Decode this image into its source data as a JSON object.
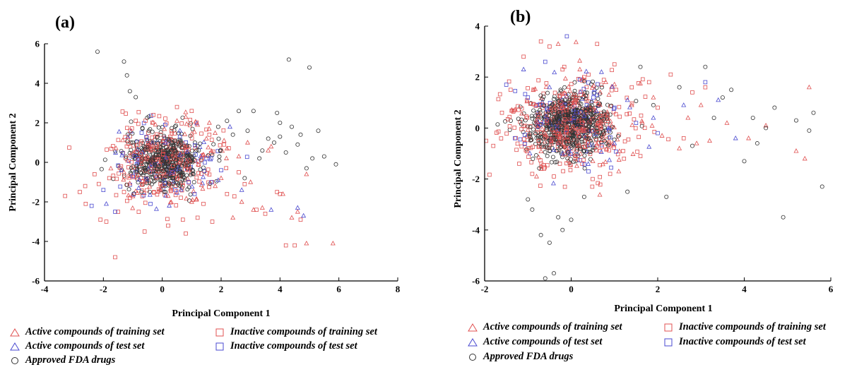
{
  "colors": {
    "active_training": "#e05050",
    "inactive_training": "#e05050",
    "active_test": "#4a4ad0",
    "inactive_test": "#4a4ad0",
    "fda": "#333333"
  },
  "legend": {
    "active_training": "Active compounds of training set",
    "inactive_training": "Inactive compounds of training set",
    "active_test": "Active compounds of test set",
    "inactive_test": "Inactive compounds of test set",
    "fda": "Approved FDA drugs"
  },
  "chart_data": [
    {
      "type": "scatter",
      "panel_label": "(a)",
      "xlabel": "Principal Component 1",
      "ylabel": "Principal Component 2",
      "xlim": [
        -4,
        8
      ],
      "ylim": [
        -6,
        6
      ],
      "xticks": [
        -4,
        -2,
        0,
        2,
        4,
        6,
        8
      ],
      "yticks": [
        -6,
        -4,
        -2,
        0,
        2,
        4,
        6
      ],
      "series": [
        {
          "name": "Active compounds of training set",
          "marker": "triangle",
          "x": [
            0.8,
            1.2,
            1.6,
            2.1,
            2.6,
            3.0,
            3.4,
            3.7,
            4.1,
            4.6,
            4.9,
            5.8,
            4.9,
            1.0,
            1.5,
            2.4,
            2.9,
            0.5,
            1.8,
            2.2,
            3.1,
            4.4,
            -0.6,
            -1.3,
            0.2,
            2.7,
            3.6,
            1.4,
            0.9,
            2.0
          ],
          "y": [
            2.3,
            1.9,
            2.0,
            1.1,
            0.3,
            -1.0,
            -2.3,
            0.8,
            -1.6,
            -2.5,
            -4.1,
            -4.1,
            -0.6,
            -2.0,
            1.2,
            -2.8,
            1.0,
            2.1,
            -1.2,
            0.7,
            -2.4,
            -2.8,
            -1.0,
            -0.5,
            -1.7,
            -2.0,
            0.6,
            0.4,
            -0.4,
            -0.8
          ]
        },
        {
          "name": "Inactive compounds of training set",
          "marker": "square",
          "x": [
            -3.3,
            -2.8,
            -2.1,
            -1.9,
            -1.6,
            -1.5,
            -1.3,
            -0.6,
            0.2,
            0.8,
            1.2,
            1.7,
            2.2,
            2.6,
            3.5,
            3.9,
            4.2,
            4.5,
            4.7,
            -2.3,
            -1.8,
            -1.1,
            0.5,
            1.0,
            1.6,
            2.1,
            2.8,
            3.2,
            4.0,
            -0.9,
            -0.3,
            0.7,
            1.4,
            -2.6,
            -1.4
          ],
          "y": [
            -1.7,
            -1.5,
            -2.9,
            -3.0,
            -4.8,
            -2.5,
            -1.5,
            -3.5,
            -3.2,
            -3.6,
            -2.8,
            -3.0,
            -1.6,
            -0.5,
            -2.6,
            -1.5,
            -4.2,
            -4.2,
            -2.9,
            -0.6,
            -0.8,
            -1.8,
            2.8,
            2.6,
            1.4,
            0.9,
            -1.1,
            -2.4,
            -1.6,
            2.1,
            2.4,
            -2.9,
            -2.1,
            -2.1,
            -0.2
          ]
        },
        {
          "name": "Active compounds of test set",
          "marker": "triangle",
          "x": [
            -1.9,
            -0.8,
            0.6,
            1.3,
            2.3,
            2.7,
            3.7,
            4.6,
            4.8,
            0.1,
            1.9
          ],
          "y": [
            -2.1,
            -1.3,
            1.6,
            0.3,
            1.8,
            -1.4,
            -2.4,
            -2.3,
            -2.7,
            1.0,
            -0.9
          ]
        },
        {
          "name": "Inactive compounds of test set",
          "marker": "square",
          "x": [
            -2.4,
            -2.0,
            -1.6,
            -1.0,
            -0.4,
            0.1,
            0.6,
            1.1,
            1.5,
            2.0,
            -0.7,
            0.9
          ],
          "y": [
            -2.2,
            -1.4,
            -2.5,
            -0.7,
            -2.1,
            1.9,
            1.3,
            -1.6,
            0.2,
            -0.4,
            1.5,
            -1.0
          ]
        },
        {
          "name": "Approved FDA drugs",
          "marker": "circle",
          "x": [
            -2.2,
            -1.3,
            -1.2,
            -1.1,
            -0.9,
            4.3,
            5.0,
            3.1,
            3.9,
            4.0,
            4.4,
            4.7,
            5.3,
            5.9,
            3.8,
            4.2,
            3.4,
            2.6,
            2.9,
            2.2,
            4.9,
            5.1,
            3.6,
            4.6,
            2.4,
            2.8,
            1.9,
            3.3,
            4.0,
            5.5
          ],
          "y": [
            5.6,
            5.1,
            4.4,
            3.6,
            3.3,
            5.2,
            4.8,
            2.6,
            2.5,
            2.0,
            1.8,
            1.4,
            1.6,
            -0.1,
            1.0,
            0.5,
            0.6,
            2.6,
            1.6,
            2.1,
            -0.3,
            0.2,
            1.2,
            0.9,
            1.4,
            -0.8,
            1.8,
            0.2,
            1.3,
            0.3
          ]
        }
      ]
    },
    {
      "type": "scatter",
      "panel_label": "(b)",
      "xlabel": "Principal Component 1",
      "ylabel": "Principal Component 2",
      "xlim": [
        -2,
        6
      ],
      "ylim": [
        -6,
        4
      ],
      "xticks": [
        -2,
        0,
        2,
        4,
        6
      ],
      "yticks": [
        -6,
        -4,
        -2,
        0,
        2,
        4
      ],
      "series": [
        {
          "name": "Active compounds of training set",
          "marker": "triangle",
          "x": [
            -0.3,
            0.2,
            0.8,
            1.4,
            2.1,
            2.7,
            3.2,
            3.6,
            4.1,
            5.2,
            5.5,
            5.4,
            1.9,
            2.5,
            3.0,
            -0.8,
            0.5,
            1.1,
            4.5,
            2.9
          ],
          "y": [
            3.3,
            2.3,
            1.8,
            0.9,
            -0.3,
            0.4,
            -0.5,
            0.2,
            -0.4,
            -0.9,
            1.6,
            -1.2,
            1.2,
            -0.8,
            0.9,
            -1.9,
            -1.3,
            -1.7,
            0.1,
            -0.6
          ]
        },
        {
          "name": "Inactive compounds of training set",
          "marker": "square",
          "x": [
            -1.8,
            -1.4,
            -1.1,
            -0.7,
            -0.5,
            -0.2,
            0.3,
            0.6,
            1.0,
            1.4,
            1.8,
            2.3,
            2.8,
            3.1,
            -1.6,
            -1.2,
            -0.9,
            0.9,
            1.6,
            2.0,
            2.6,
            -0.4,
            0.1,
            1.2
          ],
          "y": [
            -0.7,
            1.5,
            2.8,
            3.4,
            3.2,
            2.3,
            2.0,
            3.3,
            2.5,
            1.6,
            1.8,
            2.1,
            1.4,
            1.6,
            0.6,
            -1.4,
            -1.8,
            -1.8,
            -1.1,
            0.8,
            -0.4,
            -1.9,
            -1.2,
            -0.9
          ]
        },
        {
          "name": "Active compounds of test set",
          "marker": "triangle",
          "x": [
            -1.1,
            -0.5,
            0.7,
            1.3,
            1.9,
            2.6,
            3.4,
            3.8,
            -0.2,
            1.0
          ],
          "y": [
            2.3,
            1.6,
            2.2,
            1.1,
            0.4,
            0.9,
            1.1,
            -0.4,
            -1.0,
            -0.6
          ]
        },
        {
          "name": "Inactive compounds of test set",
          "marker": "square",
          "x": [
            -1.5,
            -1.0,
            -0.6,
            -0.1,
            0.2,
            0.6,
            1.0,
            1.5,
            2.0,
            3.1,
            -1.3,
            0.4
          ],
          "y": [
            1.7,
            1.2,
            2.6,
            3.6,
            1.9,
            1.3,
            0.8,
            0.2,
            -0.2,
            1.8,
            -0.4,
            -1.7
          ]
        },
        {
          "name": "Approved FDA drugs",
          "marker": "circle",
          "x": [
            -0.6,
            -0.4,
            -0.5,
            -0.7,
            -0.2,
            -0.9,
            -1.0,
            -0.3,
            0.0,
            0.3,
            1.3,
            1.6,
            2.5,
            3.1,
            3.5,
            4.2,
            4.5,
            4.7,
            5.2,
            5.6,
            5.8,
            5.5,
            4.0,
            4.3,
            3.7,
            2.2,
            2.8,
            1.9,
            4.9,
            3.3
          ],
          "y": [
            -5.9,
            -5.7,
            -4.5,
            -4.2,
            -4.0,
            -3.2,
            -2.8,
            -3.5,
            -3.6,
            -2.7,
            -2.5,
            2.4,
            1.6,
            2.4,
            1.2,
            0.4,
            0.0,
            0.8,
            0.3,
            0.6,
            -2.3,
            -0.1,
            -1.3,
            -0.6,
            1.5,
            -2.7,
            -0.7,
            0.9,
            -3.5,
            0.4
          ]
        }
      ]
    }
  ]
}
